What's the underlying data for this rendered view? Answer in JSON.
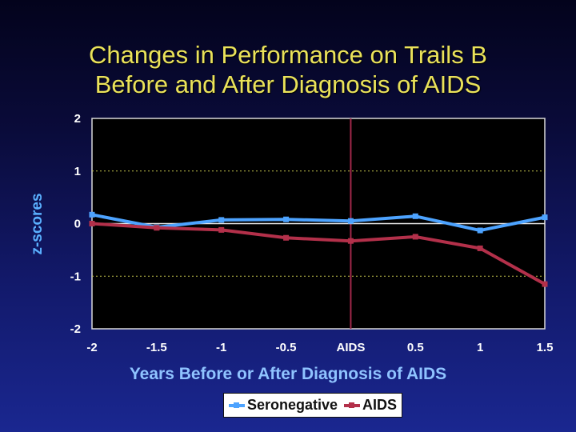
{
  "slide": {
    "title_line1": "Changes in Performance on Trails B",
    "title_line2": "Before and After Diagnosis of AIDS"
  },
  "colors": {
    "title": "#eae25a",
    "plot_background": "#000000",
    "seronegative": "#4da3ff",
    "aids": "#b3304a",
    "diagnosis_line": "#a0284a",
    "axis_label": "#8fc3ff"
  },
  "chart_data": {
    "type": "line",
    "title": "Changes in Performance on Trails B Before and After Diagnosis of AIDS",
    "xlabel": "Years Before or After Diagnosis of AIDS",
    "ylabel": "z-scores",
    "categories": [
      "-2",
      "-1.5",
      "-1",
      "-0.5",
      "AIDS",
      "0.5",
      "1",
      "1.5"
    ],
    "ylim": [
      -2,
      2
    ],
    "yticks": [
      "2",
      "1",
      "0",
      "-1",
      "-2"
    ],
    "grid": "horizontal dotted at y = 1 and -1",
    "reference_line": "vertical at AIDS",
    "legend_position": "bottom",
    "series": [
      {
        "name": "Seronegative",
        "values": [
          0.17,
          -0.07,
          0.07,
          0.08,
          0.05,
          0.14,
          -0.13,
          0.12
        ]
      },
      {
        "name": "AIDS",
        "values": [
          0.0,
          -0.08,
          -0.12,
          -0.27,
          -0.33,
          -0.25,
          -0.47,
          -1.15
        ]
      }
    ]
  },
  "legend": {
    "items": [
      "Seronegative",
      "AIDS"
    ]
  }
}
